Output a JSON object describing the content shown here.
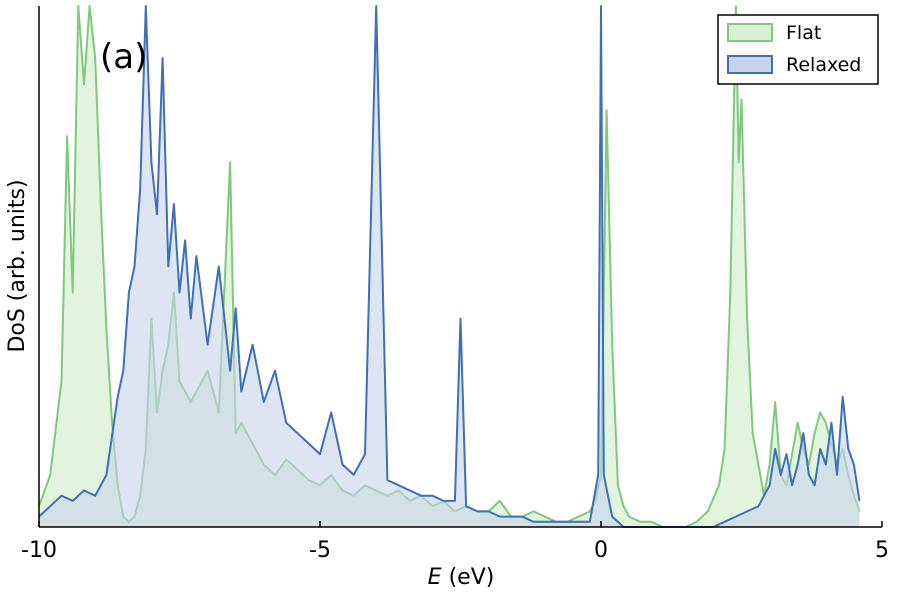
{
  "chart_data": {
    "type": "area",
    "panel_label": "(a)",
    "xlabel_var": "E",
    "xlabel_unit": " (eV)",
    "ylabel": "DoS (arb. units)",
    "xlim": [
      -10,
      5
    ],
    "ylim": [
      0,
      100
    ],
    "xticks": [
      -10,
      -5,
      0,
      5
    ],
    "xtick_labels": [
      "-10",
      "-5",
      "0",
      "5"
    ],
    "legend_position": "top-right",
    "grid": false,
    "series": [
      {
        "name": "Flat",
        "color": "#7fc97f",
        "fill": "#d9f0d3",
        "x": [
          -10.0,
          -9.8,
          -9.6,
          -9.5,
          -9.4,
          -9.3,
          -9.2,
          -9.1,
          -9.0,
          -8.9,
          -8.8,
          -8.7,
          -8.6,
          -8.5,
          -8.4,
          -8.3,
          -8.2,
          -8.1,
          -8.0,
          -7.9,
          -7.8,
          -7.7,
          -7.6,
          -7.5,
          -7.3,
          -7.0,
          -6.8,
          -6.6,
          -6.5,
          -6.4,
          -6.2,
          -6.0,
          -5.8,
          -5.6,
          -5.4,
          -5.2,
          -5.0,
          -4.8,
          -4.6,
          -4.4,
          -4.2,
          -4.0,
          -3.8,
          -3.6,
          -3.4,
          -3.2,
          -3.0,
          -2.8,
          -2.6,
          -2.4,
          -2.2,
          -2.0,
          -1.8,
          -1.6,
          -1.4,
          -1.2,
          -1.0,
          -0.8,
          -0.6,
          -0.4,
          -0.2,
          -0.1,
          0.0,
          0.1,
          0.2,
          0.3,
          0.4,
          0.5,
          0.7,
          0.9,
          1.1,
          1.3,
          1.5,
          1.7,
          1.9,
          2.1,
          2.2,
          2.3,
          2.4,
          2.45,
          2.5,
          2.6,
          2.7,
          2.8,
          2.9,
          3.0,
          3.1,
          3.2,
          3.3,
          3.4,
          3.5,
          3.6,
          3.7,
          3.8,
          3.9,
          4.0,
          4.1,
          4.2,
          4.3,
          4.4,
          4.5,
          4.6
        ],
        "y": [
          4,
          10,
          28,
          75,
          45,
          100,
          85,
          100,
          90,
          62,
          38,
          20,
          8,
          2,
          1,
          2,
          6,
          15,
          40,
          22,
          30,
          35,
          45,
          28,
          24,
          30,
          22,
          70,
          18,
          20,
          16,
          12,
          10,
          13,
          11,
          9,
          8,
          10,
          7,
          6,
          8,
          7,
          6,
          7,
          5,
          6,
          4,
          5,
          3,
          4,
          3,
          3,
          5,
          2,
          2,
          3,
          2,
          1,
          1,
          2,
          3,
          5,
          10,
          80,
          35,
          8,
          4,
          2,
          1,
          1,
          0,
          0,
          0,
          1,
          3,
          8,
          15,
          45,
          100,
          70,
          82,
          40,
          18,
          12,
          6,
          12,
          24,
          10,
          8,
          14,
          20,
          15,
          12,
          18,
          22,
          20,
          16,
          12,
          15,
          10,
          6,
          3
        ]
      },
      {
        "name": "Relaxed",
        "color": "#3f6fb5",
        "fill": "#c6d3ea",
        "x": [
          -10.0,
          -9.8,
          -9.6,
          -9.4,
          -9.2,
          -9.0,
          -8.8,
          -8.6,
          -8.5,
          -8.4,
          -8.3,
          -8.2,
          -8.1,
          -8.0,
          -7.9,
          -7.8,
          -7.7,
          -7.6,
          -7.5,
          -7.4,
          -7.3,
          -7.2,
          -7.0,
          -6.8,
          -6.6,
          -6.5,
          -6.4,
          -6.2,
          -6.0,
          -5.8,
          -5.6,
          -5.4,
          -5.2,
          -5.0,
          -4.8,
          -4.6,
          -4.4,
          -4.2,
          -4.0,
          -3.8,
          -3.6,
          -3.4,
          -3.2,
          -3.0,
          -2.8,
          -2.6,
          -2.5,
          -2.4,
          -2.2,
          -2.0,
          -1.8,
          -1.6,
          -1.4,
          -1.2,
          -1.0,
          -0.8,
          -0.6,
          -0.4,
          -0.2,
          -0.05,
          0.0,
          0.05,
          0.2,
          0.4,
          0.6,
          0.8,
          1.0,
          1.2,
          1.4,
          1.6,
          1.8,
          2.0,
          2.2,
          2.4,
          2.6,
          2.8,
          3.0,
          3.1,
          3.2,
          3.3,
          3.4,
          3.5,
          3.6,
          3.7,
          3.8,
          3.9,
          4.0,
          4.1,
          4.2,
          4.3,
          4.4,
          4.5,
          4.6
        ],
        "y": [
          2,
          4,
          6,
          5,
          7,
          6,
          10,
          25,
          30,
          45,
          50,
          65,
          100,
          70,
          60,
          90,
          50,
          62,
          45,
          55,
          40,
          52,
          35,
          50,
          30,
          42,
          26,
          35,
          24,
          30,
          20,
          18,
          16,
          14,
          22,
          12,
          10,
          14,
          100,
          9,
          8,
          7,
          6,
          6,
          5,
          5,
          40,
          4,
          3,
          3,
          2,
          2,
          2,
          1,
          1,
          1,
          1,
          1,
          1,
          10,
          100,
          10,
          2,
          0,
          0,
          0,
          0,
          0,
          0,
          0,
          0,
          0,
          1,
          2,
          3,
          4,
          8,
          15,
          10,
          14,
          8,
          12,
          18,
          10,
          8,
          15,
          12,
          20,
          10,
          25,
          15,
          12,
          5
        ]
      }
    ]
  }
}
